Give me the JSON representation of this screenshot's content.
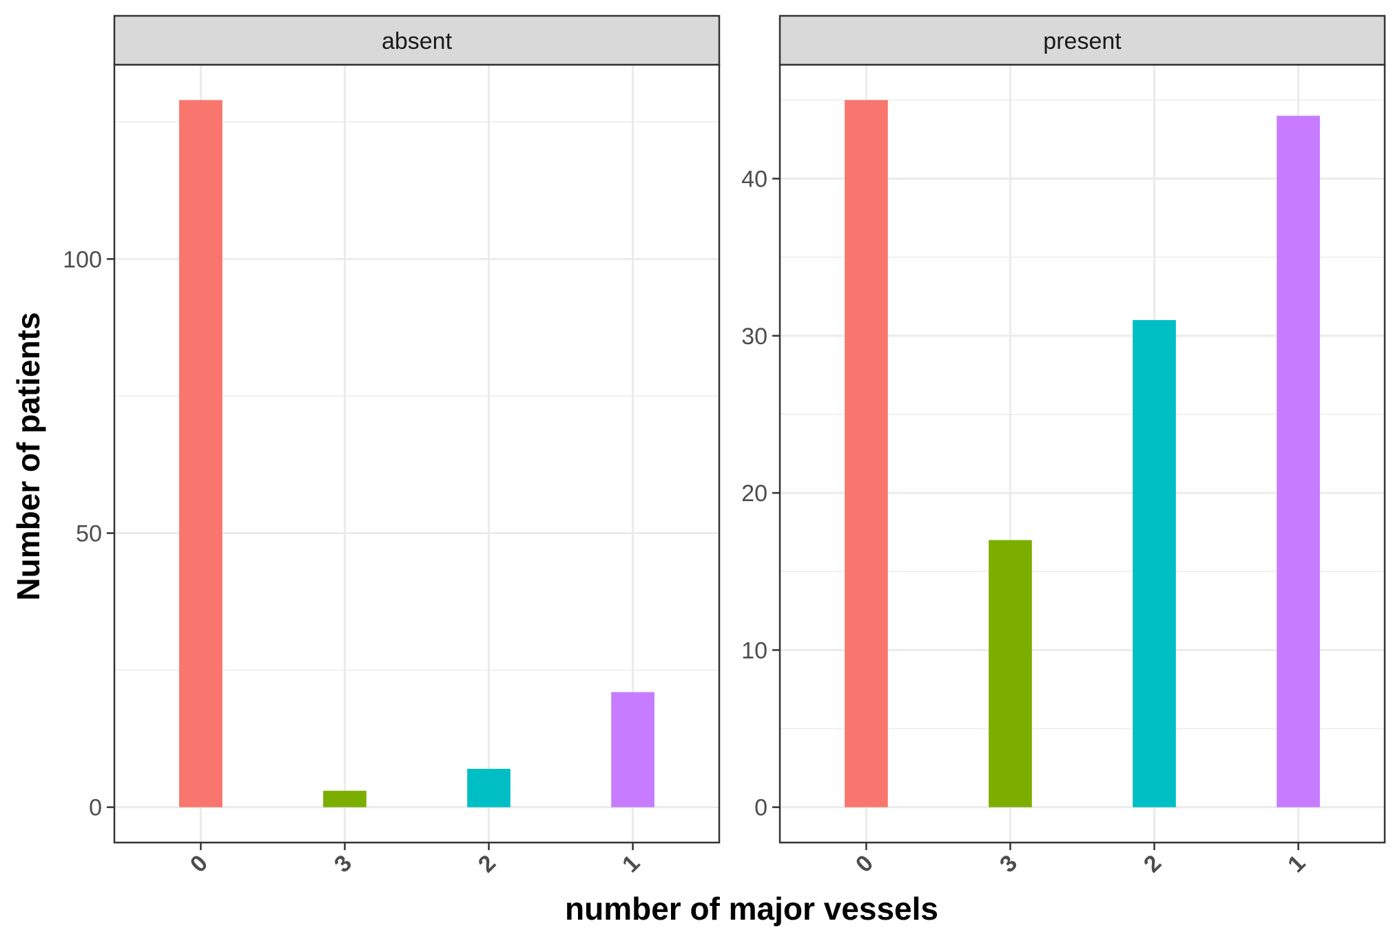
{
  "chart_data": {
    "type": "bar",
    "xlabel": "number of major vessels",
    "ylabel": "Number of patients",
    "categories": [
      "0",
      "3",
      "2",
      "1"
    ],
    "colors": {
      "0": "#F8766D",
      "3": "#7CAE00",
      "2": "#00BFC4",
      "1": "#C77CFF"
    },
    "grid": true,
    "legend": "none",
    "facets": [
      {
        "title": "absent",
        "values": [
          129,
          3,
          7,
          21
        ],
        "ylim": [
          -6.45,
          135.45
        ],
        "yticks": [
          0,
          50,
          100
        ],
        "yticklabels": [
          "0",
          "50",
          "100"
        ]
      },
      {
        "title": "present",
        "values": [
          45,
          17,
          31,
          44
        ],
        "ylim": [
          -2.25,
          47.25
        ],
        "yticks": [
          0,
          10,
          20,
          30,
          40
        ],
        "yticklabels": [
          "0",
          "10",
          "20",
          "30",
          "40"
        ]
      }
    ]
  }
}
